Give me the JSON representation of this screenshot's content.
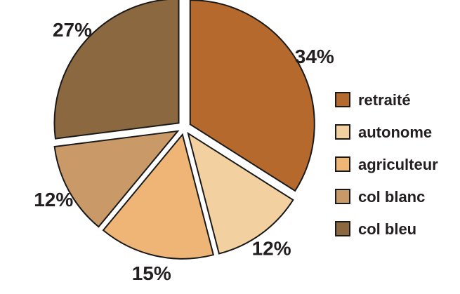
{
  "chart_data": {
    "type": "pie",
    "title": "",
    "slices": [
      {
        "label": "retraité",
        "value": 34,
        "value_label": "34%",
        "color": "#b5692c"
      },
      {
        "label": "autonome",
        "value": 12,
        "value_label": "12%",
        "color": "#f3d0a0"
      },
      {
        "label": "agriculteur",
        "value": 15,
        "value_label": "15%",
        "color": "#eeb577"
      },
      {
        "label": "col blanc",
        "value": 12,
        "value_label": "12%",
        "color": "#c99a67"
      },
      {
        "label": "col bleu",
        "value": 27,
        "value_label": "27%",
        "color": "#8b6840"
      }
    ],
    "legend_position": "right",
    "exploded": true
  }
}
